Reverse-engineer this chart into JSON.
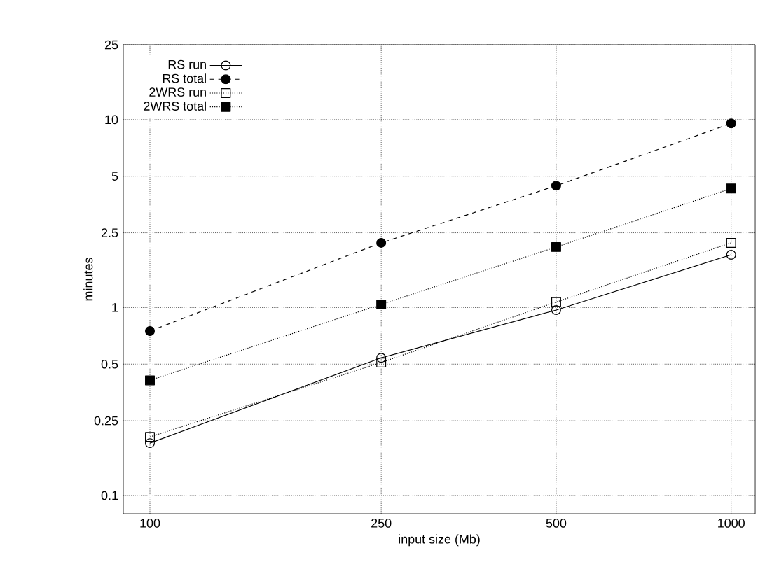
{
  "chart_data": {
    "type": "line",
    "xlabel": "input size (Mb)",
    "ylabel": "minutes",
    "log": "xy",
    "grid": true,
    "legend": "top left",
    "x": [
      100,
      250,
      500,
      1000
    ],
    "xlim": [
      90,
      1100
    ],
    "xticks": [
      100,
      250,
      500,
      1000
    ],
    "ylim": [
      0.08,
      25
    ],
    "yticks": [
      0.1,
      0.25,
      0.5,
      1,
      2.5,
      5,
      10,
      25
    ],
    "series": [
      {
        "name": "RS run",
        "color": "#000000",
        "values": [
          0.19,
          0.54,
          0.97,
          1.91
        ],
        "marker": "circle",
        "line_style": "solid"
      },
      {
        "name": "RS total",
        "color": "#000000",
        "values": [
          0.75,
          2.21,
          4.45,
          9.55
        ],
        "marker": "circle",
        "line_style": "dashed"
      },
      {
        "name": "2WRS run",
        "color": "#000000",
        "values": [
          0.205,
          0.51,
          1.07,
          2.21
        ],
        "marker": "square",
        "line_style": "dotted"
      },
      {
        "name": "2WRS total",
        "color": "#000000",
        "values": [
          0.41,
          1.04,
          2.1,
          4.3
        ],
        "marker": "square",
        "line_style": "dotted"
      }
    ]
  }
}
